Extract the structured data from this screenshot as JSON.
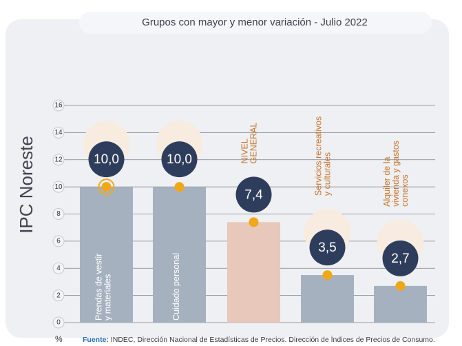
{
  "chart_data": {
    "type": "bar",
    "title": "Grupos con mayor y menor variación - Julio 2022",
    "side_label": "IPC Noreste",
    "unit": "%",
    "source_label": "Fuente:",
    "source": "INDEC, Dirección Nacional de Estadísticas de Precios. Dirección de Índices de Precios de Consumo.",
    "categories": [
      [
        "Prendas de vestir",
        "y materiales"
      ],
      [
        "Cuidado personal"
      ],
      [
        "NIVEL",
        "GENERAL"
      ],
      [
        "Servicios recreativos",
        "y culturales"
      ],
      [
        "Alquiler de la",
        "vivienda y gastos",
        "conexos"
      ]
    ],
    "values": [
      10.0,
      10.0,
      7.4,
      3.5,
      2.7
    ],
    "value_labels": [
      "10,0",
      "10,0",
      "7,4",
      "3,5",
      "2,7"
    ],
    "colors": [
      "#a6b1c0",
      "#a6b1c0",
      "#e7c8ba",
      "#a6b1c0",
      "#a6b1c0"
    ],
    "ylim": [
      0,
      16
    ],
    "yticks": [
      0,
      2,
      4,
      6,
      8,
      10,
      12,
      14,
      16
    ],
    "grid": true
  }
}
